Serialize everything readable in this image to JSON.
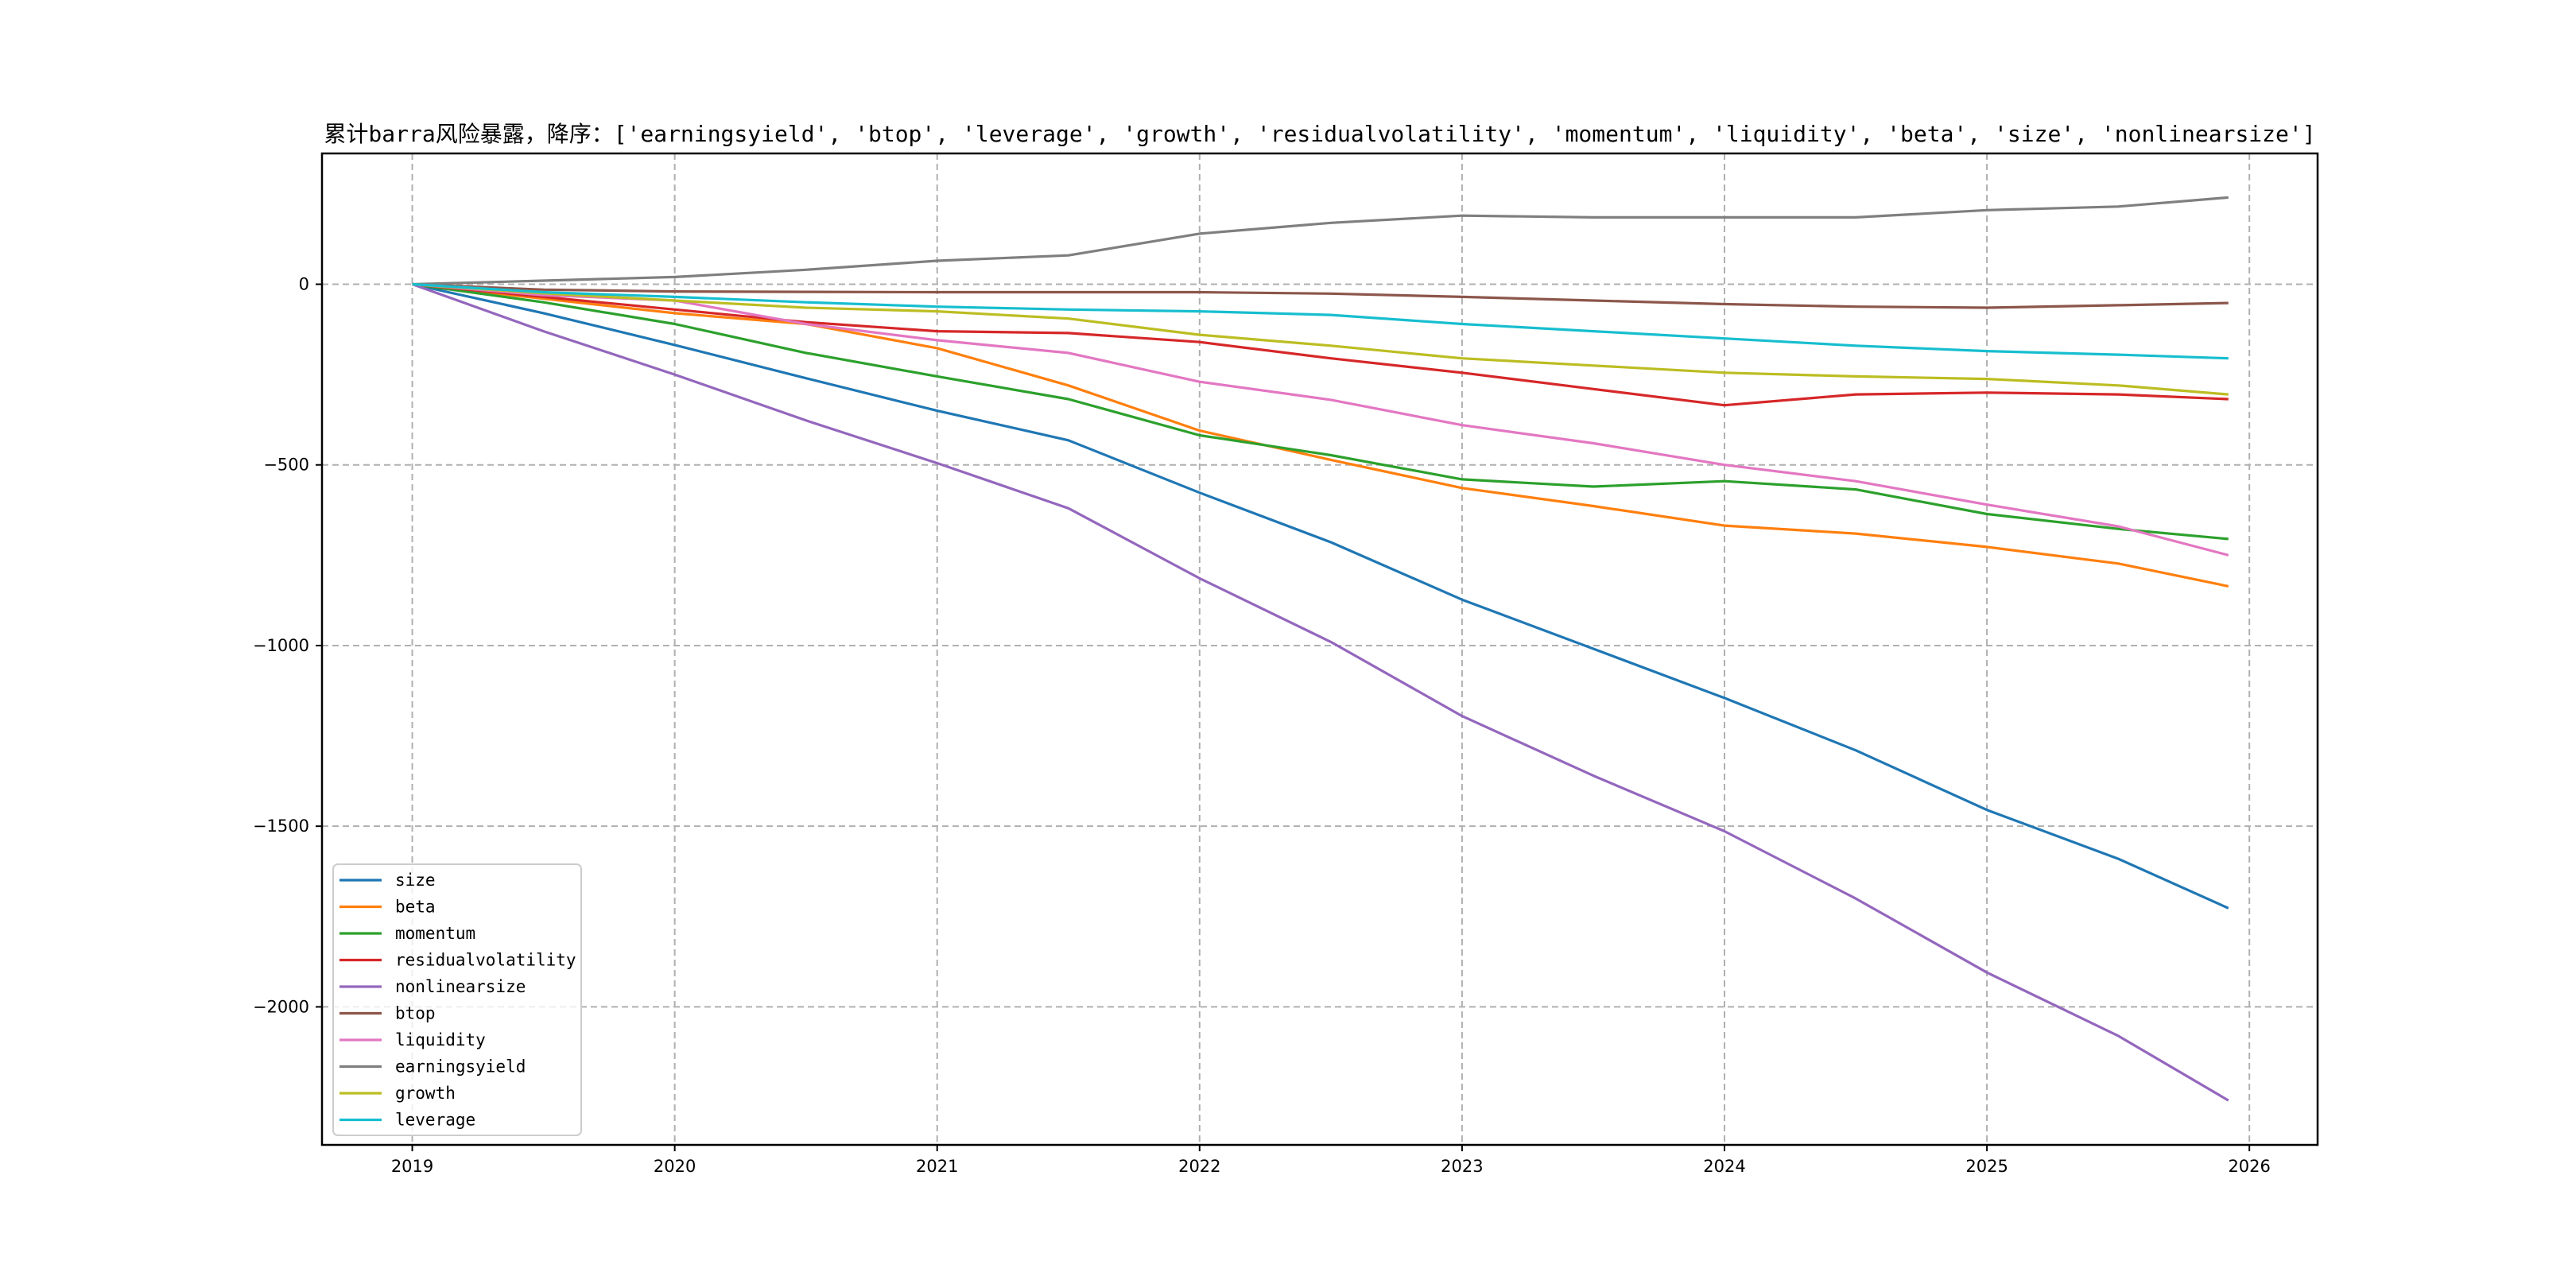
{
  "chart_data": {
    "type": "line",
    "title": "累计barra风险暴露，降序：['earningsyield', 'btop', 'leverage', 'growth', 'residualvolatility', 'momentum', 'liquidity', 'beta', 'size', 'nonlinearsize']",
    "xlabel": "",
    "ylabel": "",
    "xlim": [
      2018.656,
      2026.26
    ],
    "ylim": [
      -2382,
      362
    ],
    "grid": true,
    "legend_position": "lower-left",
    "x_ticks": [
      2019,
      2020,
      2021,
      2022,
      2023,
      2024,
      2025,
      2026
    ],
    "x_tick_labels": [
      "2019",
      "2020",
      "2021",
      "2022",
      "2023",
      "2024",
      "2025",
      "2026"
    ],
    "y_ticks": [
      0,
      -500,
      -1000,
      -1500,
      -2000
    ],
    "y_tick_labels": [
      "0",
      "−500",
      "−1000",
      "−1500",
      "−2000"
    ],
    "x": [
      2019,
      2019.5,
      2020,
      2020.5,
      2021,
      2021.5,
      2022,
      2022.5,
      2023,
      2023.5,
      2024,
      2024.5,
      2025,
      2025.5,
      2025.92
    ],
    "series": [
      {
        "name": "size",
        "color": "#1f77b4",
        "values": [
          0,
          -80,
          -168,
          -260,
          -350,
          -432,
          -577,
          -714,
          -873,
          -1009,
          -1145,
          -1290,
          -1455,
          -1590,
          -1727
        ]
      },
      {
        "name": "beta",
        "color": "#ff7f0e",
        "values": [
          0,
          -40,
          -80,
          -110,
          -177,
          -280,
          -405,
          -486,
          -564,
          -614,
          -668,
          -690,
          -727,
          -773,
          -836
        ]
      },
      {
        "name": "momentum",
        "color": "#2ca02c",
        "values": [
          0,
          -50,
          -110,
          -190,
          -255,
          -318,
          -418,
          -473,
          -540,
          -560,
          -545,
          -568,
          -636,
          -677,
          -705
        ]
      },
      {
        "name": "residualvolatility",
        "color": "#d62728",
        "values": [
          0,
          -35,
          -70,
          -105,
          -130,
          -135,
          -160,
          -205,
          -245,
          -290,
          -335,
          -305,
          -300,
          -305,
          -318
        ]
      },
      {
        "name": "nonlinearsize",
        "color": "#9467bd",
        "values": [
          0,
          -130,
          -250,
          -377,
          -495,
          -620,
          -814,
          -990,
          -1195,
          -1360,
          -1514,
          -1700,
          -1905,
          -2080,
          -2259
        ]
      },
      {
        "name": "btop",
        "color": "#8c564b",
        "values": [
          0,
          -15,
          -20,
          -21,
          -22,
          -22,
          -22,
          -26,
          -35,
          -45,
          -55,
          -62,
          -65,
          -58,
          -52
        ]
      },
      {
        "name": "liquidity",
        "color": "#e377c2",
        "values": [
          0,
          -30,
          -45,
          -110,
          -155,
          -190,
          -270,
          -320,
          -390,
          -440,
          -500,
          -545,
          -610,
          -670,
          -750
        ]
      },
      {
        "name": "earningsyield",
        "color": "#7f7f7f",
        "values": [
          0,
          10,
          20,
          40,
          65,
          80,
          140,
          170,
          190,
          185,
          185,
          185,
          205,
          215,
          240
        ]
      },
      {
        "name": "growth",
        "color": "#bcbd22",
        "values": [
          0,
          -25,
          -45,
          -65,
          -75,
          -95,
          -140,
          -170,
          -205,
          -225,
          -245,
          -255,
          -262,
          -280,
          -305
        ]
      },
      {
        "name": "leverage",
        "color": "#17becf",
        "values": [
          0,
          -22,
          -35,
          -50,
          -62,
          -70,
          -75,
          -85,
          -110,
          -130,
          -150,
          -170,
          -185,
          -195,
          -205
        ]
      }
    ]
  }
}
